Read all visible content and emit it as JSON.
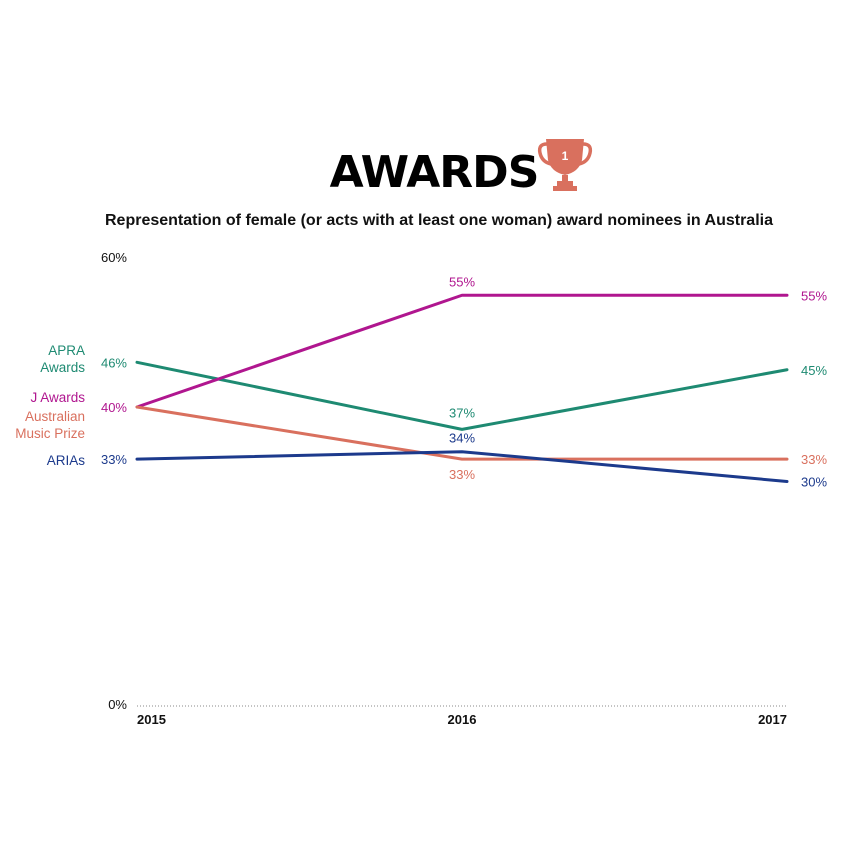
{
  "chart_data": {
    "type": "line",
    "title": "AWARDS",
    "subtitle": "Representation of female (or acts with at least one woman) award nominees in Australia",
    "title_icon": "trophy-icon",
    "title_icon_number": "1",
    "x": [
      "2015",
      "2016",
      "2017"
    ],
    "y_tick_labels": [
      "60%",
      "0%"
    ],
    "ylim": [
      0,
      60
    ],
    "grid": false,
    "baseline": "dotted",
    "legend": "series names at left of line starts",
    "series": [
      {
        "name_lines": [
          "APRA",
          "Awards"
        ],
        "color": "#1e8a72",
        "values": [
          46,
          37,
          45
        ],
        "labels": [
          "46%",
          "37%",
          "45%"
        ]
      },
      {
        "name_lines": [
          "J Awards"
        ],
        "color": "#b0168f",
        "values": [
          40,
          55,
          55
        ],
        "labels": [
          "40%",
          "55%",
          "55%"
        ]
      },
      {
        "name_lines": [
          "Australian",
          "Music Prize"
        ],
        "color": "#d9705e",
        "values": [
          40,
          33,
          33
        ],
        "labels": [
          "40%",
          "33%",
          "33%"
        ]
      },
      {
        "name_lines": [
          "ARIAs"
        ],
        "color": "#1c3a8c",
        "values": [
          33,
          34,
          30
        ],
        "labels": [
          "33%",
          "34%",
          "30%"
        ]
      }
    ]
  }
}
